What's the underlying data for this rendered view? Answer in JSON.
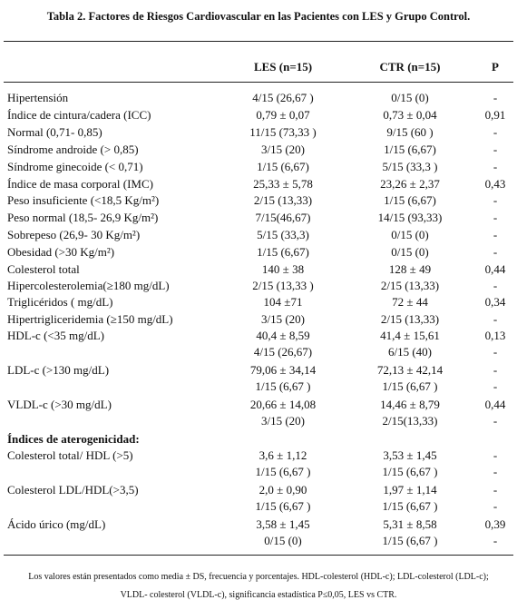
{
  "title": "Tabla 2. Factores de Riesgos Cardiovascular en las Pacientes con LES y Grupo Control.",
  "header": {
    "les": "LES (n=15)",
    "ctr": "CTR (n=15)",
    "p": "P"
  },
  "rows": [
    {
      "label": "Hipertensión",
      "les": "4/15 (26,67 )",
      "ctr": "0/15 (0)",
      "p": "-"
    },
    {
      "label": "Índice de cintura/cadera (ICC)",
      "les": "0,79 ± 0,07",
      "ctr": "0,73 ± 0,04",
      "p": "0,91"
    },
    {
      "label": "Normal (0,71- 0,85)",
      "les": "11/15 (73,33 )",
      "ctr": "9/15 (60 )",
      "p": "-"
    },
    {
      "label": "Síndrome androide (> 0,85)",
      "les": "3/15 (20)",
      "ctr": "1/15 (6,67)",
      "p": "-"
    },
    {
      "label": "Síndrome ginecoide (< 0,71)",
      "les": "1/15 (6,67)",
      "ctr": "5/15 (33,3 )",
      "p": "-"
    },
    {
      "label": "Índice de masa corporal (IMC)",
      "les": "25,33 ± 5,78",
      "ctr": "23,26 ± 2,37",
      "p": "0,43"
    },
    {
      "label": "Peso insuficiente (<18,5 Kg/m²)",
      "les": "2/15 (13,33)",
      "ctr": "1/15 (6,67)",
      "p": "-"
    },
    {
      "label": "Peso normal (18,5- 26,9 Kg/m²)",
      "les": "7/15(46,67)",
      "ctr": "14/15 (93,33)",
      "p": "-"
    },
    {
      "label": "Sobrepeso (26,9- 30 Kg/m²)",
      "les": "5/15 (33,3)",
      "ctr": "0/15 (0)",
      "p": "-"
    },
    {
      "label": "Obesidad (>30 Kg/m²)",
      "les": "1/15 (6,67)",
      "ctr": "0/15 (0)",
      "p": "-"
    },
    {
      "label": "Colesterol total",
      "les": "140 ± 38",
      "ctr": "128 ± 49",
      "p": "0,44"
    },
    {
      "label": "Hipercolesterolemia(≥180 mg/dL)",
      "les": "2/15 (13,33 )",
      "ctr": "2/15 (13,33)",
      "p": "-"
    },
    {
      "label": "Triglicéridos ( mg/dL)",
      "les": "104 ±71",
      "ctr": "72 ± 44",
      "p": "0,34"
    },
    {
      "label": "Hipertrigliceridemia (≥150 mg/dL)",
      "les": "3/15 (20)",
      "ctr": "2/15 (13,33)",
      "p": "-"
    },
    {
      "label": "HDL-c (<35 mg/dL)",
      "les": "40,4 ± 8,59",
      "ctr": "41,4 ± 15,61",
      "p": "0,13"
    },
    {
      "les": "4/15 (26,67)",
      "ctr": "6/15 (40)",
      "p": "-"
    },
    {
      "label": "LDL-c (>130 mg/dL)",
      "les": "79,06 ± 34,14",
      "ctr": "72,13 ± 42,14",
      "p": "-"
    },
    {
      "les": "1/15 (6,67 )",
      "ctr": "1/15 (6,67 )",
      "p": "-"
    },
    {
      "label": "VLDL-c (>30 mg/dL)",
      "les": "20,66 ± 14,08",
      "ctr": "14,46 ± 8,79",
      "p": "0,44"
    },
    {
      "les": "3/15 (20)",
      "ctr": "2/15(13,33)",
      "p": "-"
    },
    {
      "label": "Índices de aterogenicidad:",
      "bold": true
    },
    {
      "label": "Colesterol total/ HDL (>5)",
      "les": "3,6 ± 1,12",
      "ctr": "3,53 ± 1,45",
      "p": "-"
    },
    {
      "les": "1/15 (6,67 )",
      "ctr": "1/15 (6,67 )",
      "p": "-"
    },
    {
      "label": "Colesterol LDL/HDL(>3,5)",
      "les": "2,0 ± 0,90",
      "ctr": "1,97 ± 1,14",
      "p": "-"
    },
    {
      "les": "1/15 (6,67 )",
      "ctr": "1/15 (6,67 )",
      "p": "-"
    },
    {
      "label": "Ácido úrico (mg/dL)",
      "les": "3,58 ± 1,45",
      "ctr": "5,31 ± 8,58",
      "p": "0,39"
    },
    {
      "les": "0/15 (0)",
      "ctr": "1/15 (6,67 )",
      "p": "-"
    }
  ],
  "footnote": [
    "Los valores están presentados como media ± DS, frecuencia y porcentajes. HDL-colesterol (HDL-c); LDL-colesterol (LDL-c);",
    "VLDL-  colesterol (VLDL-c), significancia estadística P≤0,05, LES vs CTR."
  ]
}
